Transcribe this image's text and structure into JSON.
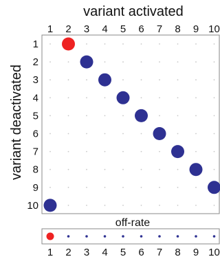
{
  "chart_data": [
    {
      "type": "scatter",
      "xlabel": "variant activated",
      "ylabel": "variant deactivated",
      "x_ticks": [
        "1",
        "2",
        "3",
        "4",
        "5",
        "6",
        "7",
        "8",
        "9",
        "10"
      ],
      "y_ticks": [
        "1",
        "2",
        "3",
        "4",
        "5",
        "6",
        "7",
        "8",
        "9",
        "10"
      ],
      "x_axis_position": "top",
      "y_axis_inverted": true,
      "background_grid": "faint dots at every integer cell",
      "points": [
        {
          "x": 2,
          "y": 1,
          "size": "large",
          "color": "#ee2222"
        },
        {
          "x": 3,
          "y": 2,
          "size": "large",
          "color": "#2e3192"
        },
        {
          "x": 4,
          "y": 3,
          "size": "large",
          "color": "#2e3192"
        },
        {
          "x": 5,
          "y": 4,
          "size": "large",
          "color": "#2e3192"
        },
        {
          "x": 6,
          "y": 5,
          "size": "large",
          "color": "#2e3192"
        },
        {
          "x": 7,
          "y": 6,
          "size": "large",
          "color": "#2e3192"
        },
        {
          "x": 8,
          "y": 7,
          "size": "large",
          "color": "#2e3192"
        },
        {
          "x": 9,
          "y": 8,
          "size": "large",
          "color": "#2e3192"
        },
        {
          "x": 10,
          "y": 9,
          "size": "large",
          "color": "#2e3192"
        },
        {
          "x": 1,
          "y": 10,
          "size": "large",
          "color": "#2e3192"
        }
      ]
    },
    {
      "type": "scatter",
      "title": "off-rate",
      "x_ticks": [
        "1",
        "2",
        "3",
        "4",
        "5",
        "6",
        "7",
        "8",
        "9",
        "10"
      ],
      "points": [
        {
          "x": 1,
          "size": "medium",
          "color": "#ee2222"
        },
        {
          "x": 2,
          "size": "small",
          "color": "#2e3192"
        },
        {
          "x": 3,
          "size": "small",
          "color": "#2e3192"
        },
        {
          "x": 4,
          "size": "small",
          "color": "#2e3192"
        },
        {
          "x": 5,
          "size": "small",
          "color": "#2e3192"
        },
        {
          "x": 6,
          "size": "small",
          "color": "#2e3192"
        },
        {
          "x": 7,
          "size": "small",
          "color": "#2e3192"
        },
        {
          "x": 8,
          "size": "small",
          "color": "#2e3192"
        },
        {
          "x": 9,
          "size": "small",
          "color": "#2e3192"
        },
        {
          "x": 10,
          "size": "small",
          "color": "#2e3192"
        }
      ]
    }
  ],
  "colors": {
    "highlight": "#ee2222",
    "primary": "#2e3192",
    "axis": "#8a8a8a",
    "grid_dot": "#c8c8c8"
  }
}
